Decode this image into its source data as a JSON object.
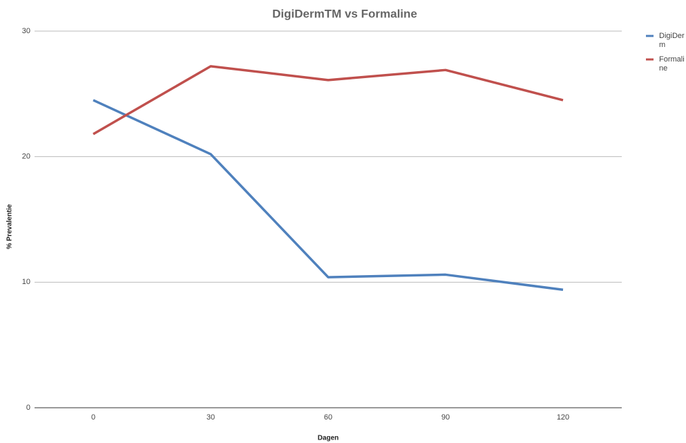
{
  "chart_data": {
    "type": "line",
    "title": "DigiDermTM vs Formaline",
    "x_label": "Dagen",
    "y_label": "% Prevalentie",
    "x": [
      0,
      30,
      60,
      90,
      120
    ],
    "xlim": [
      -15,
      135
    ],
    "xticks": [
      0,
      30,
      60,
      90,
      120
    ],
    "ylim": [
      0,
      30
    ],
    "yticks": [
      0,
      10,
      20,
      30
    ],
    "grid": true,
    "legend": "right",
    "series": [
      {
        "name": "DigiDerm",
        "color": "#4f81bd",
        "values": [
          24.5,
          20.2,
          10.4,
          10.6,
          9.4
        ]
      },
      {
        "name": "Formaline",
        "color": "#c0504d",
        "values": [
          21.8,
          27.2,
          26.1,
          26.9,
          24.5
        ]
      }
    ]
  }
}
